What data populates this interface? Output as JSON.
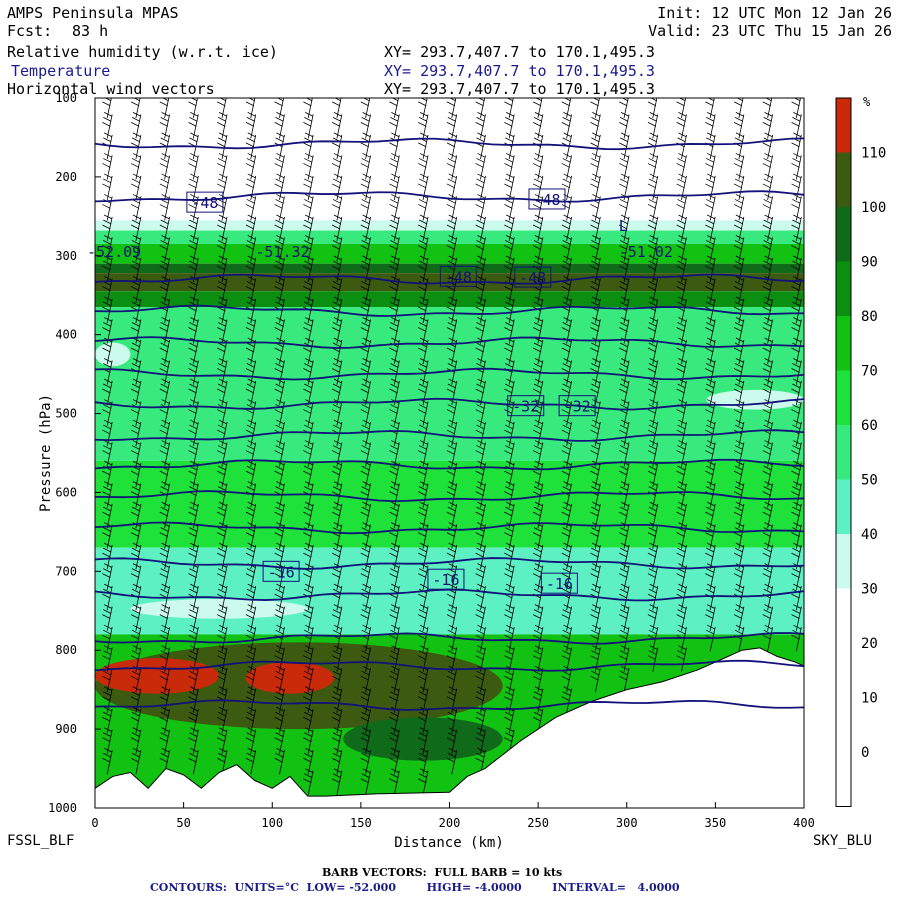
{
  "header": {
    "model": "AMPS Peninsula MPAS",
    "fcst_label": "Fcst:",
    "fcst_value": "83 h",
    "init": "Init: 12 UTC Mon 12 Jan 26",
    "valid": "Valid: 23 UTC Thu 15 Jan 26",
    "field_rh": "Relative humidity (w.r.t. ice)",
    "field_temp": "Temperature",
    "field_wind": "Horizontal wind vectors",
    "xy_rh": "XY= 293.7,407.7 to 170.1,495.3",
    "xy_temp": "XY= 293.7,407.7 to 170.1,495.3",
    "xy_wind": "XY= 293.7,407.7 to 170.1,495.3"
  },
  "endpoints": {
    "left": "FSSL_BLF",
    "right": "SKY_BLU"
  },
  "footer": {
    "barb": "BARB VECTORS:  FULL BARB = 10 kts",
    "contours": "CONTOURS:  UNITS=°C  LOW= -52.000        HIGH= -4.0000        INTERVAL=   4.0000"
  },
  "colors": {
    "rh_fill": [
      "#ffffff",
      "#ffffff",
      "#ffffff",
      "#ffffff",
      "#ccfbee",
      "#5cf0c2",
      "#38e97e",
      "#1ee13a",
      "#12c212",
      "#0a8f10",
      "#0f6b19",
      "#3c5a10",
      "#c82a0a"
    ],
    "temp_contour": "#12127a",
    "terrain": "#ffffff"
  },
  "chart_data": {
    "type": "cross-section",
    "xlabel": "Distance (km)",
    "ylabel": "Pressure (hPa)",
    "xlim": [
      0,
      400
    ],
    "ylim": [
      1000,
      100
    ],
    "x_ticks": [
      0,
      50,
      100,
      150,
      200,
      250,
      300,
      350,
      400
    ],
    "y_ticks": [
      100,
      200,
      300,
      400,
      500,
      600,
      700,
      800,
      900,
      1000
    ],
    "colorbar": {
      "unit": "%",
      "levels": [
        110,
        100,
        90,
        80,
        70,
        60,
        50,
        40,
        30,
        20,
        10,
        0
      ]
    },
    "rh_layers": [
      {
        "p_top": 255,
        "p_bot": 268,
        "rh": 35
      },
      {
        "p_top": 268,
        "p_bot": 285,
        "rh": 55
      },
      {
        "p_top": 285,
        "p_bot": 310,
        "rh": 75
      },
      {
        "p_top": 310,
        "p_bot": 322,
        "rh": 90
      },
      {
        "p_top": 322,
        "p_bot": 345,
        "rh": 102
      },
      {
        "p_top": 345,
        "p_bot": 365,
        "rh": 80
      },
      {
        "p_top": 365,
        "p_bot": 560,
        "rh": 55
      },
      {
        "p_top": 560,
        "p_bot": 670,
        "rh": 60
      },
      {
        "p_top": 670,
        "p_bot": 780,
        "rh": 45
      },
      {
        "p_top": 780,
        "p_bot": 1000,
        "rh": 75
      }
    ],
    "rh_patches": [
      {
        "x0": 0,
        "x1": 20,
        "p_top": 410,
        "p_bot": 440,
        "rh": 35
      },
      {
        "x0": 345,
        "x1": 400,
        "p_top": 470,
        "p_bot": 495,
        "rh": 35
      },
      {
        "x0": 20,
        "x1": 120,
        "p_top": 735,
        "p_bot": 760,
        "rh": 35
      },
      {
        "x0": 0,
        "x1": 230,
        "p_top": 790,
        "p_bot": 900,
        "rh": 105
      },
      {
        "x0": 0,
        "x1": 70,
        "p_top": 810,
        "p_bot": 855,
        "rh": 115
      },
      {
        "x0": 85,
        "x1": 135,
        "p_top": 815,
        "p_bot": 855,
        "rh": 115
      },
      {
        "x0": 140,
        "x1": 230,
        "p_top": 885,
        "p_bot": 940,
        "rh": 90
      }
    ],
    "terrain_surface": [
      {
        "x": 0,
        "p": 975
      },
      {
        "x": 10,
        "p": 960
      },
      {
        "x": 20,
        "p": 955
      },
      {
        "x": 30,
        "p": 975
      },
      {
        "x": 40,
        "p": 950
      },
      {
        "x": 50,
        "p": 958
      },
      {
        "x": 60,
        "p": 975
      },
      {
        "x": 70,
        "p": 955
      },
      {
        "x": 80,
        "p": 945
      },
      {
        "x": 90,
        "p": 965
      },
      {
        "x": 100,
        "p": 975
      },
      {
        "x": 110,
        "p": 960
      },
      {
        "x": 120,
        "p": 985
      },
      {
        "x": 130,
        "p": 985
      },
      {
        "x": 160,
        "p": 982
      },
      {
        "x": 200,
        "p": 980
      },
      {
        "x": 210,
        "p": 960
      },
      {
        "x": 220,
        "p": 950
      },
      {
        "x": 240,
        "p": 915
      },
      {
        "x": 260,
        "p": 885
      },
      {
        "x": 280,
        "p": 865
      },
      {
        "x": 300,
        "p": 850
      },
      {
        "x": 320,
        "p": 840
      },
      {
        "x": 340,
        "p": 825
      },
      {
        "x": 355,
        "p": 810
      },
      {
        "x": 365,
        "p": 800
      },
      {
        "x": 375,
        "p": 797
      },
      {
        "x": 385,
        "p": 808
      },
      {
        "x": 395,
        "p": 815
      },
      {
        "x": 400,
        "p": 820
      }
    ],
    "temp_contours": [
      {
        "p": 158
      },
      {
        "p": 225
      },
      {
        "p": 330
      },
      {
        "p": 370
      },
      {
        "p": 410
      },
      {
        "p": 450
      },
      {
        "p": 488
      },
      {
        "p": 528
      },
      {
        "p": 565
      },
      {
        "p": 605
      },
      {
        "p": 645
      },
      {
        "p": 690
      },
      {
        "p": 730
      },
      {
        "p": 785
      },
      {
        "p": 820
      },
      {
        "p": 870
      }
    ],
    "contour_labels": [
      {
        "text": "-48",
        "x": 62,
        "p": 232
      },
      {
        "text": "-48",
        "x": 255,
        "p": 228
      },
      {
        "text": "-48",
        "x": 205,
        "p": 326
      },
      {
        "text": "-48",
        "x": 247,
        "p": 327
      },
      {
        "text": "-32",
        "x": 243,
        "p": 490
      },
      {
        "text": "-32",
        "x": 272,
        "p": 490
      },
      {
        "text": "-16",
        "x": 105,
        "p": 700
      },
      {
        "text": "-16",
        "x": 198,
        "p": 710
      },
      {
        "text": "-16",
        "x": 262,
        "p": 715
      }
    ],
    "temp_annotations": [
      {
        "text": "-52.09",
        "x": 0,
        "p": 295
      },
      {
        "text": "-51.32",
        "x": 95,
        "p": 295
      },
      {
        "text": "-51.02",
        "x": 300,
        "p": 295
      },
      {
        "text": "L",
        "x": 300,
        "p": 262
      }
    ]
  }
}
